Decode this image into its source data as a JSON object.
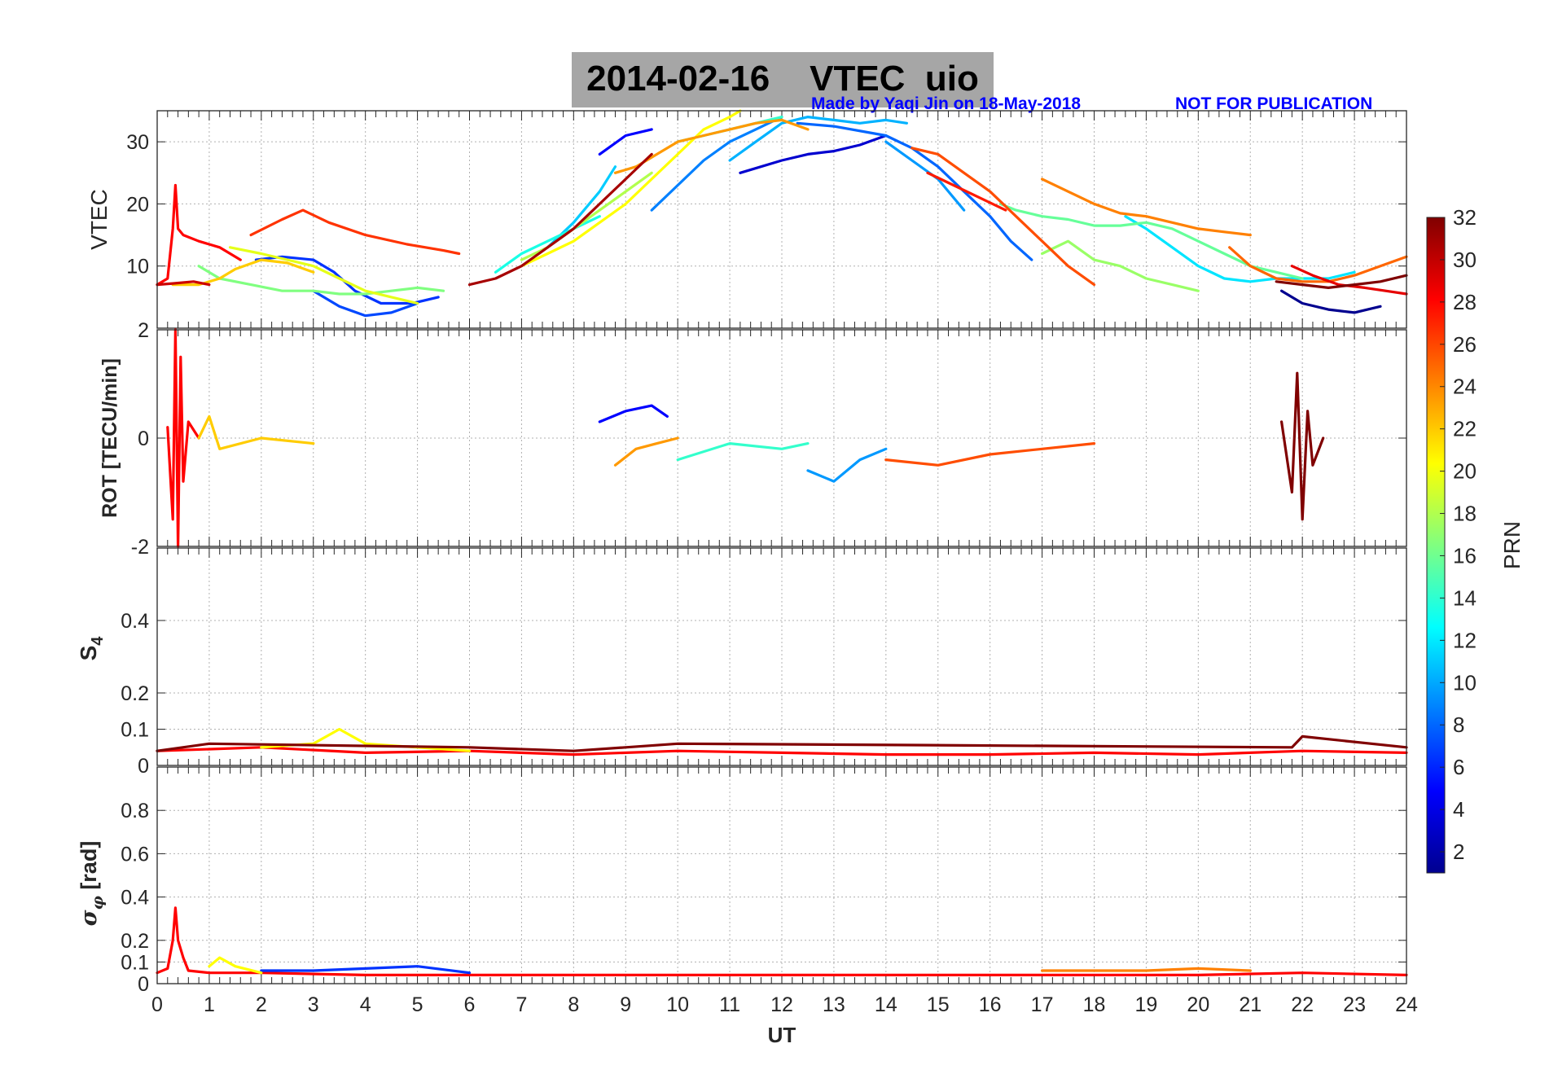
{
  "title": {
    "date": "2014-02-16",
    "quantity": "VTEC",
    "station": "uio"
  },
  "credit": "Made by Yaqi Jin on 18-May-2018",
  "notice": "NOT FOR PUBLICATION",
  "colors": {
    "title_box": "#a6a6a6",
    "credit": "#0000ff",
    "grid": "#b0b0b0"
  },
  "colorbar": {
    "label": "PRN",
    "ticks": [
      "2",
      "4",
      "6",
      "8",
      "10",
      "12",
      "14",
      "16",
      "18",
      "20",
      "22",
      "24",
      "26",
      "28",
      "30",
      "32"
    ],
    "range": [
      1,
      32
    ],
    "colormap": "jet"
  },
  "chart_data": [
    {
      "type": "line",
      "panel": "vtec",
      "ylabel": "VTEC",
      "xlim": [
        0,
        24
      ],
      "ylim": [
        0,
        35
      ],
      "yticks": [
        "10",
        "20",
        "30"
      ],
      "grid": true,
      "series": [
        {
          "prn": 1,
          "color": "#00008f",
          "x": [
            21.6,
            22,
            22.5,
            23,
            23.5
          ],
          "y": [
            6,
            4,
            3,
            2.5,
            3.5
          ]
        },
        {
          "prn": 2,
          "color": "#0000cf",
          "x": [
            11.2,
            12,
            12.5,
            13,
            13.5,
            14
          ],
          "y": [
            25,
            27,
            28,
            28.5,
            29.5,
            31
          ]
        },
        {
          "prn": 3,
          "color": "#0000ff",
          "x": [
            8.5,
            9,
            9.5
          ],
          "y": [
            28,
            31,
            32
          ]
        },
        {
          "prn": 5,
          "color": "#0033ff",
          "x": [
            1.9,
            2.4,
            3,
            3.4,
            3.8,
            4.3,
            4.9,
            5.4
          ],
          "y": [
            11,
            11.5,
            11,
            9,
            6,
            4,
            4,
            5
          ]
        },
        {
          "prn": 6,
          "color": "#0048ff",
          "x": [
            3,
            3.5,
            4,
            4.5,
            5
          ],
          "y": [
            6,
            3.5,
            2,
            2.5,
            4
          ]
        },
        {
          "prn": 7,
          "color": "#0066ff",
          "x": [
            12.3,
            13,
            14,
            14.5,
            15,
            15.5,
            16,
            16.4,
            16.8
          ],
          "y": [
            33,
            32.5,
            31,
            29,
            26,
            22,
            18,
            14,
            11
          ]
        },
        {
          "prn": 8,
          "color": "#0080ff",
          "x": [
            9.5,
            10,
            10.5,
            11,
            11.5,
            12
          ],
          "y": [
            19,
            23,
            27,
            30,
            32,
            34
          ]
        },
        {
          "prn": 9,
          "color": "#0099ff",
          "x": [
            14,
            14.5,
            15,
            15.5
          ],
          "y": [
            30,
            27,
            24,
            19
          ]
        },
        {
          "prn": 10,
          "color": "#00b2ff",
          "x": [
            11,
            11.5,
            12,
            12.5,
            13,
            13.5,
            14,
            14.4
          ],
          "y": [
            27,
            30,
            33,
            34,
            33.5,
            33,
            33.5,
            33
          ]
        },
        {
          "prn": 11,
          "color": "#00ccff",
          "x": [
            7.5,
            8,
            8.5,
            8.8
          ],
          "y": [
            13,
            17,
            22,
            26
          ]
        },
        {
          "prn": 12,
          "color": "#00e5ff",
          "x": [
            18.6,
            19,
            19.5,
            20,
            20.5,
            21,
            21.5,
            22,
            22.5,
            23
          ],
          "y": [
            18,
            16,
            13,
            10,
            8,
            7.5,
            8,
            8,
            8,
            9
          ]
        },
        {
          "prn": 13,
          "color": "#19ffe6",
          "x": [
            6.5,
            7,
            7.5,
            8,
            8.5
          ],
          "y": [
            9,
            12,
            14,
            16,
            18
          ]
        },
        {
          "prn": 14,
          "color": "#33ffcc",
          "x": [
            10,
            10.5,
            11,
            11.5,
            12
          ],
          "y": [
            30,
            31,
            32,
            33,
            34
          ]
        },
        {
          "prn": 15,
          "color": "#66ff99",
          "x": [
            16.2,
            16.5,
            17,
            17.5,
            18,
            18.5,
            19,
            19.5,
            20,
            20.5,
            21,
            21.5,
            22
          ],
          "y": [
            20,
            19,
            18,
            17.5,
            16.5,
            16.5,
            17,
            16,
            14,
            12,
            10,
            9,
            8
          ]
        },
        {
          "prn": 16,
          "color": "#80ff80",
          "x": [
            0.8,
            1.2,
            1.8,
            2.4,
            3,
            3.5,
            4,
            4.5,
            5,
            5.5
          ],
          "y": [
            10,
            8,
            7,
            6,
            6,
            5.5,
            5.5,
            6,
            6.5,
            6
          ]
        },
        {
          "prn": 17,
          "color": "#99ff66",
          "x": [
            17,
            17.5,
            18,
            18.5,
            19,
            19.5,
            20
          ],
          "y": [
            12,
            14,
            11,
            10,
            8,
            7,
            6
          ]
        },
        {
          "prn": 18,
          "color": "#b2ff4d",
          "x": [
            7,
            7.5,
            8,
            8.5,
            9,
            9.5
          ],
          "y": [
            11,
            13,
            16,
            19,
            22,
            25
          ]
        },
        {
          "prn": 19,
          "color": "#e5ff19",
          "x": [
            1.4,
            2,
            2.5,
            3,
            3.5,
            4,
            4.5,
            5
          ],
          "y": [
            13,
            12,
            11,
            10,
            8,
            6,
            5,
            4
          ]
        },
        {
          "prn": 20,
          "color": "#ffff00",
          "x": [
            7,
            7.5,
            8,
            8.5,
            9,
            9.5,
            10,
            10.5,
            11,
            11.2
          ],
          "y": [
            10,
            12,
            14,
            17,
            20,
            24,
            28,
            32,
            34,
            35
          ]
        },
        {
          "prn": 21,
          "color": "#ffcc00",
          "x": [
            0.3,
            0.8,
            1.2,
            1.5,
            2,
            2.5,
            3
          ],
          "y": [
            7,
            7,
            8,
            9.5,
            11,
            10.5,
            9
          ]
        },
        {
          "prn": 22,
          "color": "#ff9900",
          "x": [
            8.8,
            9.2,
            9.6,
            10,
            10.5,
            11,
            11.5,
            12,
            12.5
          ],
          "y": [
            25,
            26,
            28,
            30,
            31,
            32,
            33,
            33.5,
            32
          ]
        },
        {
          "prn": 23,
          "color": "#ff8000",
          "x": [
            17,
            17.5,
            18,
            18.5,
            19,
            19.5,
            20,
            20.5,
            21
          ],
          "y": [
            24,
            22,
            20,
            18.5,
            18,
            17,
            16,
            15.5,
            15
          ]
        },
        {
          "prn": 24,
          "color": "#ff6600",
          "x": [
            20.6,
            21,
            21.5,
            22,
            22.5,
            23,
            23.5,
            24
          ],
          "y": [
            13,
            10,
            8,
            7.5,
            7.5,
            8.5,
            10,
            11.5
          ]
        },
        {
          "prn": 25,
          "color": "#ff4d00",
          "x": [
            14.5,
            15,
            15.5,
            16,
            16.5,
            17,
            17.5,
            18
          ],
          "y": [
            29,
            28,
            25,
            22,
            18,
            14,
            10,
            7
          ]
        },
        {
          "prn": 26,
          "color": "#ff3300",
          "x": [
            1.8,
            2.4,
            2.8,
            3.3,
            4,
            4.8,
            5.5,
            5.8
          ],
          "y": [
            15,
            17.5,
            19,
            17,
            15,
            13.5,
            12.5,
            12
          ]
        },
        {
          "prn": 27,
          "color": "#ff1a00",
          "x": [
            14.8,
            15.3,
            15.8,
            16.3
          ],
          "y": [
            25,
            23,
            21,
            19
          ]
        },
        {
          "prn": 28,
          "color": "#ff0000",
          "x": [
            0,
            0.2,
            0.3,
            0.35,
            0.4,
            0.5,
            0.8,
            1.2,
            1.6
          ],
          "y": [
            7,
            8,
            16,
            23,
            16,
            15,
            14,
            13,
            11
          ]
        },
        {
          "prn": 29,
          "color": "#e60000",
          "x": [
            21.8,
            22.2,
            22.7,
            23.2,
            23.6,
            24
          ],
          "y": [
            10,
            8.5,
            7,
            6.5,
            6,
            5.5
          ]
        },
        {
          "prn": 30,
          "color": "#cc0000",
          "x": [
            0,
            0.3,
            0.7,
            1
          ],
          "y": [
            7,
            7.2,
            7.5,
            7
          ]
        },
        {
          "prn": 31,
          "color": "#a60000",
          "x": [
            6,
            6.5,
            7,
            7.5,
            8,
            8.5,
            9,
            9.5
          ],
          "y": [
            7,
            8,
            10,
            13,
            16,
            20,
            24,
            28
          ]
        },
        {
          "prn": 32,
          "color": "#800000",
          "x": [
            21.5,
            22,
            22.5,
            23,
            23.5,
            24
          ],
          "y": [
            7.5,
            7,
            6.5,
            7,
            7.5,
            8.5
          ]
        }
      ]
    },
    {
      "type": "line",
      "panel": "rot",
      "ylabel": "ROT [TECU/min]",
      "xlim": [
        0,
        24
      ],
      "ylim": [
        -2,
        2
      ],
      "yticks": [
        "-2",
        "0",
        "2"
      ],
      "grid": true,
      "series": [
        {
          "prn": 28,
          "color": "#ff0000",
          "x": [
            0.2,
            0.3,
            0.35,
            0.4,
            0.45,
            0.5,
            0.6,
            0.8
          ],
          "y": [
            0.2,
            -1.5,
            2,
            -2,
            1.5,
            -0.8,
            0.3,
            0
          ]
        },
        {
          "prn": 32,
          "color": "#800000",
          "x": [
            21.6,
            21.8,
            21.9,
            22,
            22.1,
            22.2,
            22.4
          ],
          "y": [
            0.3,
            -1,
            1.2,
            -1.5,
            0.5,
            -0.5,
            0
          ]
        },
        {
          "prn": 22,
          "color": "#ff9900",
          "x": [
            8.8,
            9.2,
            9.6,
            10
          ],
          "y": [
            -0.5,
            -0.2,
            -0.1,
            0
          ]
        },
        {
          "prn": 14,
          "color": "#33ffcc",
          "x": [
            10,
            11,
            12,
            12.5
          ],
          "y": [
            -0.4,
            -0.1,
            -0.2,
            -0.1
          ]
        },
        {
          "prn": 9,
          "color": "#0099ff",
          "x": [
            12.5,
            13,
            13.5,
            14
          ],
          "y": [
            -0.6,
            -0.8,
            -0.4,
            -0.2
          ]
        },
        {
          "prn": 25,
          "color": "#ff4d00",
          "x": [
            14,
            15,
            16,
            17,
            18
          ],
          "y": [
            -0.4,
            -0.5,
            -0.3,
            -0.2,
            -0.1
          ]
        },
        {
          "prn": 21,
          "color": "#ffcc00",
          "x": [
            0.8,
            1,
            1.2,
            2,
            3
          ],
          "y": [
            0,
            0.4,
            -0.2,
            0,
            -0.1
          ]
        },
        {
          "prn": 3,
          "color": "#0000ff",
          "x": [
            8.5,
            9,
            9.5,
            9.8
          ],
          "y": [
            0.3,
            0.5,
            0.6,
            0.4
          ]
        }
      ]
    },
    {
      "type": "line",
      "panel": "s4",
      "ylabel": "S4",
      "xlim": [
        0,
        24
      ],
      "ylim": [
        0,
        0.6
      ],
      "yticks": [
        "0",
        "0.1",
        "0.2",
        "0.4"
      ],
      "grid": true,
      "series": [
        {
          "prn": 28,
          "color": "#ff0000",
          "x": [
            0,
            2,
            4,
            6,
            8,
            10,
            12,
            14,
            16,
            18,
            20,
            22,
            24
          ],
          "y": [
            0.04,
            0.05,
            0.035,
            0.04,
            0.03,
            0.04,
            0.035,
            0.03,
            0.03,
            0.035,
            0.03,
            0.04,
            0.035
          ]
        },
        {
          "prn": 20,
          "color": "#ffff00",
          "x": [
            2,
            3,
            3.5,
            4,
            5,
            6
          ],
          "y": [
            0.05,
            0.06,
            0.1,
            0.06,
            0.05,
            0.04
          ]
        },
        {
          "prn": 32,
          "color": "#800000",
          "x": [
            0,
            1,
            6,
            8,
            9,
            10,
            21.8,
            22,
            24
          ],
          "y": [
            0.04,
            0.06,
            0.05,
            0.04,
            0.05,
            0.06,
            0.05,
            0.08,
            0.05
          ]
        }
      ]
    },
    {
      "type": "line",
      "panel": "sigma_phi",
      "ylabel": "σφ [rad]",
      "xlabel": "UT",
      "xlim": [
        0,
        24
      ],
      "ylim": [
        0,
        1
      ],
      "xticks": [
        "0",
        "1",
        "2",
        "3",
        "4",
        "5",
        "6",
        "7",
        "8",
        "9",
        "10",
        "11",
        "12",
        "13",
        "14",
        "15",
        "16",
        "17",
        "18",
        "19",
        "20",
        "21",
        "22",
        "23",
        "24"
      ],
      "yticks": [
        "0",
        "0.1",
        "0.2",
        "0.4",
        "0.6",
        "0.8"
      ],
      "grid": true,
      "series": [
        {
          "prn": 28,
          "color": "#ff0000",
          "x": [
            0,
            0.2,
            0.3,
            0.35,
            0.4,
            0.5,
            0.6,
            1,
            2,
            4,
            6,
            8,
            10,
            12,
            14,
            16,
            18,
            20,
            22,
            24
          ],
          "y": [
            0.05,
            0.07,
            0.2,
            0.35,
            0.2,
            0.12,
            0.06,
            0.05,
            0.05,
            0.04,
            0.04,
            0.04,
            0.04,
            0.04,
            0.04,
            0.04,
            0.04,
            0.04,
            0.05,
            0.04
          ]
        },
        {
          "prn": 5,
          "color": "#0033ff",
          "x": [
            2,
            3,
            4,
            5,
            6
          ],
          "y": [
            0.06,
            0.06,
            0.07,
            0.08,
            0.05
          ]
        },
        {
          "prn": 20,
          "color": "#ffff00",
          "x": [
            1,
            1.2,
            1.5,
            2
          ],
          "y": [
            0.08,
            0.12,
            0.08,
            0.05
          ]
        },
        {
          "prn": 23,
          "color": "#ff8000",
          "x": [
            17,
            18,
            19,
            20,
            21
          ],
          "y": [
            0.06,
            0.06,
            0.06,
            0.07,
            0.06
          ]
        }
      ]
    }
  ]
}
